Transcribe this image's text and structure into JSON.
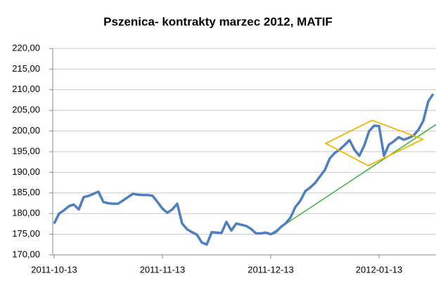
{
  "chart_data": {
    "type": "line",
    "title": "Pszenica- kontrakty marzec 2012, MATIF",
    "categories": [
      "2011-10-13",
      null,
      null,
      null,
      null,
      null,
      null,
      null,
      null,
      null,
      null,
      null,
      null,
      null,
      null,
      null,
      null,
      null,
      null,
      null,
      null,
      null,
      "2011-11-13",
      null,
      null,
      null,
      null,
      null,
      null,
      null,
      null,
      null,
      null,
      null,
      null,
      null,
      null,
      null,
      null,
      null,
      null,
      null,
      null,
      null,
      "2011-12-13",
      null,
      null,
      null,
      null,
      null,
      null,
      null,
      null,
      null,
      null,
      null,
      null,
      null,
      null,
      null,
      null,
      null,
      null,
      null,
      null,
      null,
      "2012-01-13",
      null,
      null,
      null,
      null,
      null,
      null,
      null,
      null,
      null,
      null,
      null
    ],
    "series": [
      {
        "name": "Pszenica",
        "color": "#4f7fbd",
        "values": [
          177.6,
          180.0,
          180.8,
          181.8,
          182.2,
          181.0,
          184.0,
          184.3,
          184.8,
          185.3,
          182.8,
          182.5,
          182.4,
          182.4,
          183.2,
          184.0,
          184.8,
          184.6,
          184.5,
          184.5,
          184.3,
          182.8,
          181.2,
          180.2,
          181.0,
          182.4,
          177.6,
          176.2,
          175.5,
          174.9,
          173.0,
          172.5,
          175.5,
          175.4,
          175.3,
          178.0,
          175.9,
          177.6,
          177.3,
          177.0,
          176.3,
          175.2,
          175.2,
          175.4,
          175.0,
          175.5,
          176.7,
          177.6,
          179.0,
          181.6,
          183.1,
          185.4,
          186.3,
          187.4,
          189.0,
          190.6,
          193.4,
          194.7,
          195.5,
          196.6,
          197.8,
          195.5,
          194.0,
          196.5,
          200.0,
          201.3,
          201.2,
          194.0,
          196.7,
          197.5,
          198.5,
          197.9,
          198.3,
          198.9,
          200.3,
          202.5,
          207.2,
          209.0
        ]
      }
    ],
    "ylim": [
      170,
      220
    ],
    "yticks": [
      {
        "value": 170,
        "label": "170,00"
      },
      {
        "value": 175,
        "label": "175,00"
      },
      {
        "value": 180,
        "label": "180,00"
      },
      {
        "value": 185,
        "label": "185,00"
      },
      {
        "value": 190,
        "label": "190,00"
      },
      {
        "value": 195,
        "label": "195,00"
      },
      {
        "value": 200,
        "label": "200,00"
      },
      {
        "value": 205,
        "label": "205,00"
      },
      {
        "value": 210,
        "label": "210,00"
      },
      {
        "value": 215,
        "label": "215,00"
      },
      {
        "value": 220,
        "label": "220,00"
      }
    ],
    "grid": true,
    "trendline": {
      "color": "#3cb43c",
      "from": [
        44,
        175.1
      ],
      "to": [
        78,
        201.9
      ]
    },
    "diamond": {
      "color": "#f0b400",
      "points": [
        [
          55.2,
          197.0
        ],
        [
          64.6,
          202.6
        ],
        [
          74.9,
          198.0
        ],
        [
          63.8,
          191.6
        ]
      ]
    }
  }
}
